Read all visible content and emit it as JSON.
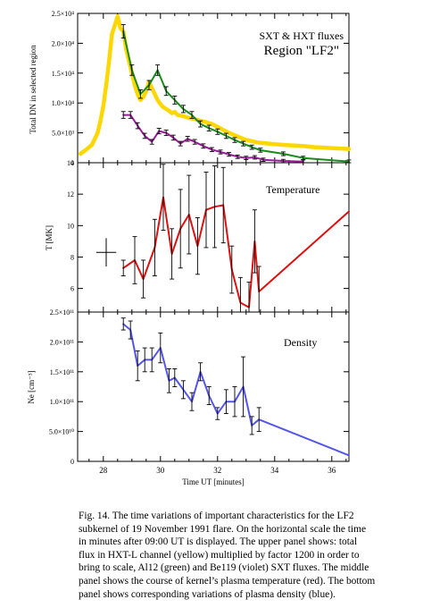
{
  "chart_data": {
    "type": "line",
    "x_label": "Time UT [minutes]",
    "x_ticks": [
      28,
      30,
      32,
      34,
      36
    ],
    "x_range": [
      27.1,
      36.6
    ],
    "panels": [
      {
        "id": "fluxes",
        "y_label": "Total DN in selected region",
        "y_range": [
          0,
          25000
        ],
        "y_ticks": [
          {
            "value": 0,
            "label": "0"
          },
          {
            "value": 5000,
            "label": "5.0×10³"
          },
          {
            "value": 10000,
            "label": "1.0×10⁴"
          },
          {
            "value": 15000,
            "label": "1.5×10⁴"
          },
          {
            "value": 20000,
            "label": "2.0×10⁴"
          },
          {
            "value": 25000,
            "label": "2.5×10⁴"
          }
        ],
        "annotation": [
          "SXT & HXT fluxes",
          "Region \"LF2\""
        ],
        "series": [
          {
            "color": "#ffd700",
            "x": [
              27.2,
              27.4,
              27.6,
              27.8,
              27.9,
              28.0,
              28.1,
              28.2,
              28.3,
              28.4,
              28.5,
              28.55,
              28.6,
              28.7,
              28.8,
              28.9,
              29.0,
              29.1,
              29.2,
              29.3,
              29.4,
              29.5,
              29.6,
              29.7,
              29.8,
              29.9,
              30.0,
              30.1,
              30.2,
              30.3,
              30.4,
              30.5,
              30.6,
              30.8,
              31.0,
              31.2,
              31.4,
              31.6,
              31.8,
              32.0,
              32.2,
              32.4,
              32.6,
              32.8,
              33.0,
              33.2,
              33.4,
              33.6,
              33.8,
              34.0,
              34.3,
              34.6,
              35.0,
              35.4,
              35.8,
              36.2,
              36.6
            ],
            "y": [
              1500,
              2200,
              3000,
              5000,
              7000,
              9500,
              13000,
              17000,
              21500,
              23000,
              24500,
              23500,
              22500,
              22000,
              19000,
              17000,
              15000,
              13000,
              11500,
              10500,
              11000,
              12000,
              13500,
              12500,
              11500,
              10500,
              9800,
              9300,
              9000,
              8700,
              8300,
              8500,
              8000,
              7800,
              7500,
              7300,
              7000,
              6800,
              6500,
              6000,
              5500,
              5000,
              4600,
              4200,
              3800,
              3600,
              3400,
              3300,
              3200,
              3100,
              3000,
              2900,
              2800,
              2600,
              2500,
              2400,
              2300
            ]
          },
          {
            "color": "#1a8a1a",
            "x": [
              28.7,
              29.0,
              29.3,
              29.6,
              29.9,
              30.2,
              30.5,
              30.8,
              31.1,
              31.4,
              31.7,
              32.0,
              32.3,
              32.6,
              32.9,
              33.2,
              33.5,
              34.3,
              35.0,
              36.6
            ],
            "y": [
              22000,
              15500,
              11500,
              13000,
              15500,
              12000,
              10500,
              9000,
              8000,
              6500,
              5800,
              5200,
              4500,
              3800,
              3200,
              2600,
              2100,
              1500,
              800,
              200
            ]
          },
          {
            "color": "#9b1c9b",
            "x": [
              28.7,
              28.95,
              29.2,
              29.45,
              29.7,
              29.95,
              30.2,
              30.45,
              30.7,
              30.95,
              31.2,
              31.5,
              31.8,
              32.1,
              32.4,
              32.7,
              33.0,
              33.3,
              33.6,
              34.3,
              35.0
            ],
            "y": [
              8000,
              8000,
              6200,
              4500,
              3500,
              5300,
              5000,
              4200,
              3200,
              4000,
              3500,
              2800,
              2200,
              1800,
              1400,
              1000,
              800,
              900,
              500,
              300,
              200
            ]
          }
        ]
      },
      {
        "id": "temperature",
        "y_label": "T [MK]",
        "y_range": [
          4.5,
          14
        ],
        "y_ticks": [
          {
            "value": 6,
            "label": "6"
          },
          {
            "value": 8,
            "label": "8"
          },
          {
            "value": 10,
            "label": "10"
          },
          {
            "value": 12,
            "label": "12"
          },
          {
            "value": 14,
            "label": "14"
          }
        ],
        "annotation": "Temperature",
        "cross": {
          "x": 28.1,
          "y": 8.3,
          "x_err": 0.35,
          "y_err": 0.9
        },
        "series": [
          {
            "color": "#dd1111",
            "x": [
              28.7,
              29.1,
              29.4,
              29.8,
              30.1,
              30.4,
              30.7,
              31.0,
              31.3,
              31.6,
              31.9,
              32.2,
              32.5,
              32.8,
              33.1,
              33.3,
              33.45,
              36.6
            ],
            "y": [
              7.3,
              7.8,
              6.6,
              8.6,
              11.8,
              8.2,
              9.8,
              10.7,
              8.7,
              11.0,
              11.2,
              11.3,
              7.2,
              5.1,
              4.8,
              9.0,
              5.8,
              10.9
            ],
            "err": [
              0.5,
              1.5,
              1.2,
              1.8,
              2.1,
              1.6,
              2.5,
              2.5,
              1.8,
              2.4,
              2.6,
              2.4,
              1.5,
              1.6,
              1.6,
              2.0,
              1.6,
              0
            ]
          }
        ]
      },
      {
        "id": "density",
        "y_label": "Ne [cm⁻³]",
        "y_range": [
          0,
          250000000000.0
        ],
        "y_ticks": [
          {
            "value": 0,
            "label": "0"
          },
          {
            "value": 50000000000.0,
            "label": "5.0×10¹⁰"
          },
          {
            "value": 100000000000.0,
            "label": "1.0×10¹¹"
          },
          {
            "value": 150000000000.0,
            "label": "1.5×10¹¹"
          },
          {
            "value": 200000000000.0,
            "label": "2.0×10¹¹"
          },
          {
            "value": 250000000000.0,
            "label": "2.5×10¹¹"
          }
        ],
        "annotation": "Density",
        "series": [
          {
            "color": "#5555ee",
            "x": [
              28.7,
              28.95,
              29.2,
              29.45,
              29.7,
              30.0,
              30.3,
              30.5,
              30.8,
              31.1,
              31.4,
              31.7,
              32.0,
              32.3,
              32.6,
              32.9,
              33.2,
              33.45,
              36.6
            ],
            "y": [
              230000000000.0,
              220000000000.0,
              160000000000.0,
              170000000000.0,
              170000000000.0,
              190000000000.0,
              135000000000.0,
              140000000000.0,
              120000000000.0,
              100000000000.0,
              150000000000.0,
              110000000000.0,
              80000000000.0,
              100000000000.0,
              100000000000.0,
              125000000000.0,
              60000000000.0,
              70000000000.0,
              10000000000.0
            ],
            "err": [
              10000000000.0,
              15000000000.0,
              25000000000.0,
              20000000000.0,
              20000000000.0,
              25000000000.0,
              20000000000.0,
              15000000000.0,
              15000000000.0,
              15000000000.0,
              15000000000.0,
              15000000000.0,
              10000000000.0,
              20000000000.0,
              25000000000.0,
              50000000000.0,
              15000000000.0,
              20000000000.0,
              0
            ]
          }
        ]
      }
    ]
  },
  "caption": {
    "lines": [
      "Fig.   14. The time variations of important characteristics for the LF2",
      "subkernel   of 19 November 1991 flare. On the horizontal scale the time",
      "in  minutes   after 09:00 UT is displayed. The upper panel shows: total",
      "flux  in   HXT-L channel (yellow) multiplied by factor 1200 in order to",
      "bring to scale, Al12 (green) and Be119 (violet) SXT fluxes. The middle",
      "panel shows the course of kernel’s plasma temperature (red). The bottom",
      "panel shows corresponding variations of plasma density (blue)."
    ]
  }
}
